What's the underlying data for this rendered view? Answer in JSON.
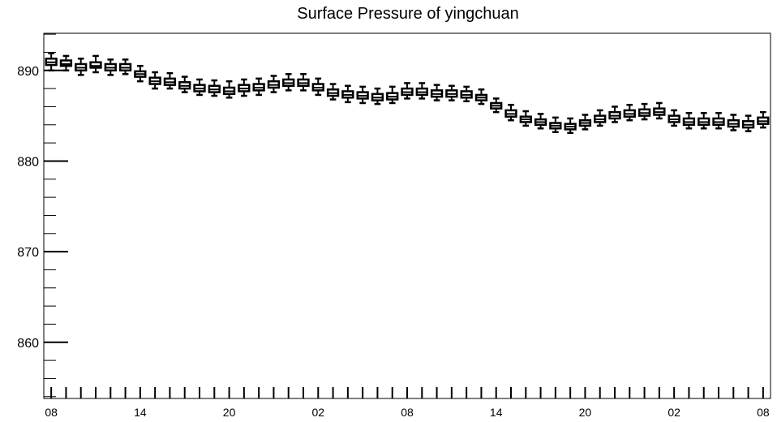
{
  "chart_data": {
    "type": "box",
    "title": "Surface Pressure of yingchuan",
    "xlabel": "",
    "ylabel": "",
    "ylim": [
      853.8,
      894.1
    ],
    "xlim": [
      -0.5,
      48.5
    ],
    "y_ticks": [
      860,
      870,
      880,
      890
    ],
    "y_tick_labels": [
      "860",
      "870",
      "880",
      "890"
    ],
    "x_ticks": [
      0,
      6,
      12,
      18,
      24,
      30,
      36,
      42,
      48
    ],
    "x_tick_labels": [
      "08",
      "14",
      "20",
      "02",
      "08",
      "14",
      "20",
      "02",
      "08"
    ],
    "grid": false,
    "legend": "none",
    "box_width": 0.7,
    "colors": {
      "stroke": "#000000",
      "fill": "#ffffff",
      "background": "#ffffff"
    },
    "boxes": [
      {
        "x": 0,
        "median": 890.9,
        "q1": 890.6,
        "q3": 891.3,
        "whisker_low": 890.0,
        "whisker_high": 891.9
      },
      {
        "x": 1,
        "median": 890.7,
        "q1": 890.5,
        "q3": 891.1,
        "whisker_low": 890.0,
        "whisker_high": 891.6
      },
      {
        "x": 2,
        "median": 890.3,
        "q1": 890.0,
        "q3": 890.7,
        "whisker_low": 889.5,
        "whisker_high": 891.3
      },
      {
        "x": 3,
        "median": 890.5,
        "q1": 890.3,
        "q3": 890.9,
        "whisker_low": 889.8,
        "whisker_high": 891.6
      },
      {
        "x": 4,
        "median": 890.3,
        "q1": 890.0,
        "q3": 890.7,
        "whisker_low": 889.5,
        "whisker_high": 891.2
      },
      {
        "x": 5,
        "median": 890.3,
        "q1": 890.0,
        "q3": 890.7,
        "whisker_low": 889.6,
        "whisker_high": 891.2
      },
      {
        "x": 6,
        "median": 889.6,
        "q1": 889.3,
        "q3": 889.9,
        "whisker_low": 888.8,
        "whisker_high": 890.5
      },
      {
        "x": 7,
        "median": 888.8,
        "q1": 888.5,
        "q3": 889.2,
        "whisker_low": 888.0,
        "whisker_high": 889.8
      },
      {
        "x": 8,
        "median": 888.7,
        "q1": 888.4,
        "q3": 889.1,
        "whisker_low": 888.0,
        "whisker_high": 889.7
      },
      {
        "x": 9,
        "median": 888.3,
        "q1": 888.0,
        "q3": 888.7,
        "whisker_low": 887.6,
        "whisker_high": 889.3
      },
      {
        "x": 10,
        "median": 888.0,
        "q1": 887.7,
        "q3": 888.4,
        "whisker_low": 887.3,
        "whisker_high": 889.0
      },
      {
        "x": 11,
        "median": 887.9,
        "q1": 887.6,
        "q3": 888.3,
        "whisker_low": 887.2,
        "whisker_high": 888.9
      },
      {
        "x": 12,
        "median": 887.7,
        "q1": 887.4,
        "q3": 888.1,
        "whisker_low": 887.0,
        "whisker_high": 888.8
      },
      {
        "x": 13,
        "median": 888.0,
        "q1": 887.7,
        "q3": 888.4,
        "whisker_low": 887.2,
        "whisker_high": 889.0
      },
      {
        "x": 14,
        "median": 888.1,
        "q1": 887.8,
        "q3": 888.5,
        "whisker_low": 887.3,
        "whisker_high": 889.1
      },
      {
        "x": 15,
        "median": 888.4,
        "q1": 888.1,
        "q3": 888.8,
        "whisker_low": 887.6,
        "whisker_high": 889.4
      },
      {
        "x": 16,
        "median": 888.6,
        "q1": 888.3,
        "q3": 889.0,
        "whisker_low": 887.8,
        "whisker_high": 889.6
      },
      {
        "x": 17,
        "median": 888.6,
        "q1": 888.3,
        "q3": 889.0,
        "whisker_low": 887.8,
        "whisker_high": 889.6
      },
      {
        "x": 18,
        "median": 888.1,
        "q1": 887.8,
        "q3": 888.5,
        "whisker_low": 887.3,
        "whisker_high": 889.1
      },
      {
        "x": 19,
        "median": 887.5,
        "q1": 887.2,
        "q3": 887.9,
        "whisker_low": 886.8,
        "whisker_high": 888.5
      },
      {
        "x": 20,
        "median": 887.3,
        "q1": 887.0,
        "q3": 887.7,
        "whisker_low": 886.5,
        "whisker_high": 888.3
      },
      {
        "x": 21,
        "median": 887.2,
        "q1": 886.9,
        "q3": 887.6,
        "whisker_low": 886.4,
        "whisker_high": 888.2
      },
      {
        "x": 22,
        "median": 887.0,
        "q1": 886.7,
        "q3": 887.4,
        "whisker_low": 886.3,
        "whisker_high": 888.0
      },
      {
        "x": 23,
        "median": 887.1,
        "q1": 886.8,
        "q3": 887.5,
        "whisker_low": 886.4,
        "whisker_high": 888.2
      },
      {
        "x": 24,
        "median": 887.6,
        "q1": 887.3,
        "q3": 888.0,
        "whisker_low": 886.9,
        "whisker_high": 888.6
      },
      {
        "x": 25,
        "median": 887.6,
        "q1": 887.3,
        "q3": 888.0,
        "whisker_low": 886.9,
        "whisker_high": 888.6
      },
      {
        "x": 26,
        "median": 887.4,
        "q1": 887.1,
        "q3": 887.8,
        "whisker_low": 886.7,
        "whisker_high": 888.4
      },
      {
        "x": 27,
        "median": 887.4,
        "q1": 887.1,
        "q3": 887.8,
        "whisker_low": 886.7,
        "whisker_high": 888.3
      },
      {
        "x": 28,
        "median": 887.3,
        "q1": 887.0,
        "q3": 887.7,
        "whisker_low": 886.6,
        "whisker_high": 888.2
      },
      {
        "x": 29,
        "median": 887.0,
        "q1": 886.7,
        "q3": 887.3,
        "whisker_low": 886.3,
        "whisker_high": 887.9
      },
      {
        "x": 30,
        "median": 886.1,
        "q1": 885.8,
        "q3": 886.4,
        "whisker_low": 885.4,
        "whisker_high": 886.9
      },
      {
        "x": 31,
        "median": 885.2,
        "q1": 884.9,
        "q3": 885.6,
        "whisker_low": 884.5,
        "whisker_high": 886.2
      },
      {
        "x": 32,
        "median": 884.6,
        "q1": 884.3,
        "q3": 884.9,
        "whisker_low": 883.9,
        "whisker_high": 885.5
      },
      {
        "x": 33,
        "median": 884.3,
        "q1": 884.0,
        "q3": 884.6,
        "whisker_low": 883.6,
        "whisker_high": 885.2
      },
      {
        "x": 34,
        "median": 883.9,
        "q1": 883.6,
        "q3": 884.2,
        "whisker_low": 883.2,
        "whisker_high": 884.8
      },
      {
        "x": 35,
        "median": 883.8,
        "q1": 883.5,
        "q3": 884.1,
        "whisker_low": 883.1,
        "whisker_high": 884.7
      },
      {
        "x": 36,
        "median": 884.2,
        "q1": 883.9,
        "q3": 884.5,
        "whisker_low": 883.5,
        "whisker_high": 885.1
      },
      {
        "x": 37,
        "median": 884.6,
        "q1": 884.3,
        "q3": 885.0,
        "whisker_low": 883.9,
        "whisker_high": 885.6
      },
      {
        "x": 38,
        "median": 885.0,
        "q1": 884.7,
        "q3": 885.4,
        "whisker_low": 884.3,
        "whisker_high": 886.0
      },
      {
        "x": 39,
        "median": 885.2,
        "q1": 884.9,
        "q3": 885.6,
        "whisker_low": 884.5,
        "whisker_high": 886.2
      },
      {
        "x": 40,
        "median": 885.3,
        "q1": 885.0,
        "q3": 885.7,
        "whisker_low": 884.6,
        "whisker_high": 886.3
      },
      {
        "x": 41,
        "median": 885.4,
        "q1": 885.1,
        "q3": 885.8,
        "whisker_low": 884.7,
        "whisker_high": 886.4
      },
      {
        "x": 42,
        "median": 884.6,
        "q1": 884.3,
        "q3": 885.0,
        "whisker_low": 883.9,
        "whisker_high": 885.6
      },
      {
        "x": 43,
        "median": 884.3,
        "q1": 884.0,
        "q3": 884.7,
        "whisker_low": 883.6,
        "whisker_high": 885.3
      },
      {
        "x": 44,
        "median": 884.3,
        "q1": 884.0,
        "q3": 884.7,
        "whisker_low": 883.6,
        "whisker_high": 885.3
      },
      {
        "x": 45,
        "median": 884.3,
        "q1": 884.0,
        "q3": 884.7,
        "whisker_low": 883.6,
        "whisker_high": 885.3
      },
      {
        "x": 46,
        "median": 884.1,
        "q1": 883.8,
        "q3": 884.5,
        "whisker_low": 883.4,
        "whisker_high": 885.1
      },
      {
        "x": 47,
        "median": 884.0,
        "q1": 883.7,
        "q3": 884.4,
        "whisker_low": 883.3,
        "whisker_high": 885.0
      },
      {
        "x": 48,
        "median": 884.4,
        "q1": 884.1,
        "q3": 884.8,
        "whisker_low": 883.7,
        "whisker_high": 885.4
      }
    ]
  }
}
